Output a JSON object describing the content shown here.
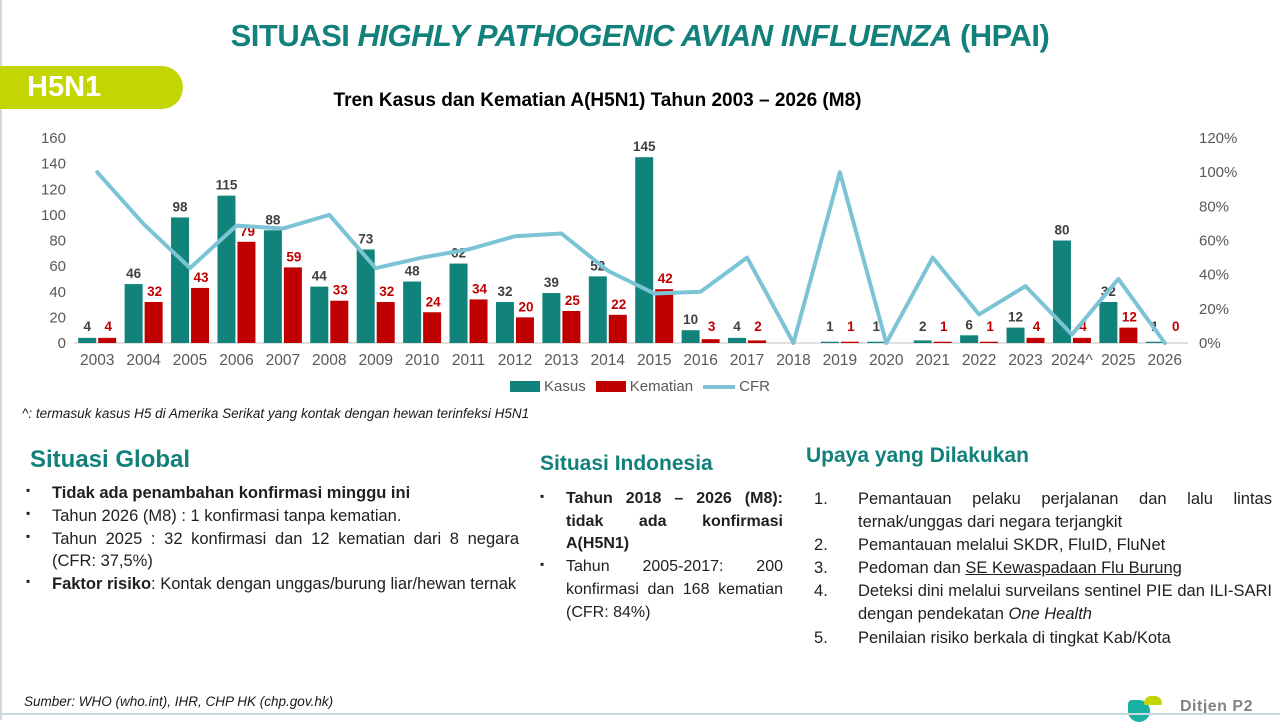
{
  "slide": {
    "title_prefix": "SITUASI ",
    "title_italic": "HIGHLY PATHOGENIC AVIAN INFLUENZA",
    "title_suffix": " (HPAI)",
    "badge": "H5N1",
    "source": "Sumber: WHO (who.int), IHR, CHP HK (chp.gov.hk)",
    "logo_text": "Ditjen P2"
  },
  "colors": {
    "teal": "#12807b",
    "badge_green": "#c3d503",
    "bar_kasus": "#12837b",
    "bar_kematian": "#c00000",
    "cfr_line": "#7cc4d5",
    "axis_text": "#595959",
    "kasus_label": "#404040"
  },
  "chart_data": {
    "type": "bar",
    "subtype": "combo bar + line (dual axis)",
    "title": "Tren Kasus dan Kematian A(H5N1) Tahun 2003 – 2026 (M8)",
    "categories": [
      "2003",
      "2004",
      "2005",
      "2006",
      "2007",
      "2008",
      "2009",
      "2010",
      "2011",
      "2012",
      "2013",
      "2014",
      "2015",
      "2016",
      "2017",
      "2018",
      "2019",
      "2020",
      "2021",
      "2022",
      "2023",
      "2024^",
      "2025",
      "2026"
    ],
    "series": [
      {
        "name": "Kasus",
        "type": "bar",
        "color": "#12837b",
        "values": [
          4,
          46,
          98,
          115,
          88,
          44,
          73,
          48,
          62,
          32,
          39,
          52,
          145,
          10,
          4,
          0,
          1,
          1,
          2,
          6,
          12,
          80,
          32,
          1
        ],
        "labels": [
          "4",
          "46",
          "98",
          "115",
          "88",
          "44",
          "73",
          "48",
          "62",
          "32",
          "39",
          "52",
          "145",
          "10",
          "4",
          "",
          "1",
          "1",
          "2",
          "6",
          "12",
          "80",
          "32",
          "1"
        ]
      },
      {
        "name": "Kematian",
        "type": "bar",
        "color": "#c00000",
        "values": [
          4,
          32,
          43,
          79,
          59,
          33,
          32,
          24,
          34,
          20,
          25,
          22,
          42,
          3,
          2,
          0,
          1,
          0,
          1,
          1,
          4,
          4,
          12,
          0
        ],
        "labels": [
          "4",
          "32",
          "43",
          "79",
          "59",
          "33",
          "32",
          "24",
          "34",
          "20",
          "25",
          "22",
          "42",
          "3",
          "2",
          "",
          "1",
          "",
          "1",
          "1",
          "4",
          "4",
          "12",
          "0"
        ]
      },
      {
        "name": "CFR",
        "type": "line",
        "axis": "right",
        "color": "#7cc4d5",
        "values_percent": [
          100,
          69.6,
          43.9,
          68.7,
          67.0,
          75.0,
          43.8,
          50.0,
          54.8,
          62.5,
          64.1,
          42.3,
          29.0,
          30.0,
          50.0,
          0,
          100,
          0,
          50,
          16.7,
          33.3,
          5.0,
          37.5,
          0
        ]
      }
    ],
    "left_axis": {
      "min": 0,
      "max": 160,
      "step": 20
    },
    "right_axis": {
      "min": 0,
      "max": 120,
      "step": 20,
      "suffix": "%"
    },
    "grid": false,
    "legend_position": "bottom",
    "footnote": "^: termasuk kasus H5 di Amerika Serikat yang kontak dengan hewan terinfeksi H5N1"
  },
  "sections": {
    "global": {
      "heading": "Situasi Global",
      "bullets": [
        {
          "segments": [
            {
              "t": "Tidak ada penambahan konfirmasi minggu ini",
              "b": true
            }
          ]
        },
        {
          "segments": [
            {
              "t": "Tahun 2026 (M8) : 1 konfirmasi tanpa kematian."
            }
          ]
        },
        {
          "segments": [
            {
              "t": "Tahun 2025 : 32 konfirmasi dan 12 kematian dari 8 negara (CFR: 37,5%)"
            }
          ]
        },
        {
          "segments": [
            {
              "t": "Faktor risiko",
              "b": true
            },
            {
              "t": ": Kontak dengan unggas/burung liar/hewan ternak"
            }
          ]
        }
      ]
    },
    "indonesia": {
      "heading": "Situasi Indonesia",
      "bullets": [
        {
          "segments": [
            {
              "t": "Tahun 2018 – 2026 (M8): tidak ada konfirmasi A(H5N1)",
              "b": true
            }
          ]
        },
        {
          "segments": [
            {
              "t": "Tahun 2005-2017: 200 konfirmasi dan 168 kematian (CFR: 84%)"
            }
          ]
        }
      ]
    },
    "upaya": {
      "heading": "Upaya yang Dilakukan",
      "items": [
        {
          "segments": [
            {
              "t": "Pemantauan pelaku perjalanan dan lalu lintas ternak/unggas dari negara terjangkit"
            }
          ]
        },
        {
          "segments": [
            {
              "t": "Pemantauan melalui SKDR, FluID, FluNet"
            }
          ]
        },
        {
          "segments": [
            {
              "t": "Pedoman dan "
            },
            {
              "t": "SE Kewaspadaan Flu Burung",
              "u": true
            }
          ]
        },
        {
          "segments": [
            {
              "t": "Deteksi dini melalui surveilans sentinel PIE dan ILI-SARI dengan pendekatan "
            },
            {
              "t": "One Health",
              "i": true
            }
          ]
        },
        {
          "segments": [
            {
              "t": "Penilaian risiko berkala di tingkat Kab/Kota"
            }
          ]
        }
      ]
    }
  }
}
